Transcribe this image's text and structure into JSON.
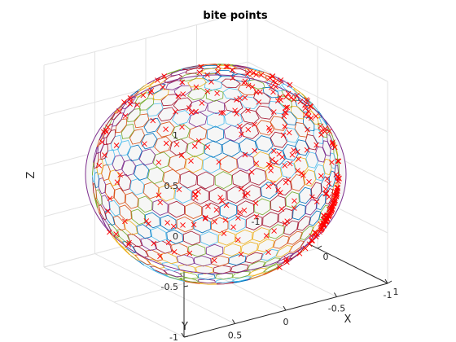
{
  "chart_data": {
    "type": "scatter",
    "title": "bite points",
    "xlabel": "X",
    "ylabel": "Y",
    "zlabel": "Z",
    "xlim": [
      -1,
      1
    ],
    "ylim": [
      -1,
      1
    ],
    "zlim": [
      -1,
      1
    ],
    "xticks": [
      "-1",
      "0",
      "1"
    ],
    "yticks": [
      "1",
      "0.5",
      "0",
      "-0.5",
      "-1"
    ],
    "zticks": [
      "1",
      "0.5",
      "0",
      "-0.5",
      "-1"
    ],
    "grid": true,
    "surface": "unit sphere tessellated into hexagonal cells",
    "marker": "x",
    "marker_color": "#ff0000",
    "cell_colors": [
      "#0072bd",
      "#d95319",
      "#edb120",
      "#7e2f8e",
      "#77ac30",
      "#4dbeee",
      "#a2142f"
    ],
    "cluster": {
      "center": [
        0.55,
        -0.75,
        -0.4
      ],
      "approx_points": 520,
      "spread": 0.16
    },
    "approx_scattered_points": 330
  }
}
